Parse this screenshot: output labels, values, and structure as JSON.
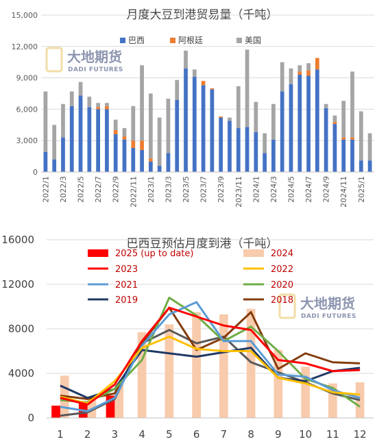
{
  "chart_data": [
    {
      "type": "bar",
      "stacked": true,
      "title": "月度大豆到港贸易量（千吨）",
      "categories": [
        "2022/1",
        "2022/2",
        "2022/3",
        "2022/4",
        "2022/5",
        "2022/6",
        "2022/7",
        "2022/8",
        "2022/9",
        "2022/10",
        "2022/11",
        "2022/12",
        "2023/1",
        "2023/2",
        "2023/3",
        "2023/4",
        "2023/5",
        "2023/6",
        "2023/7",
        "2023/8",
        "2023/9",
        "2023/10",
        "2023/11",
        "2023/12",
        "2024/1",
        "2024/2",
        "2024/3",
        "2024/4",
        "2024/5",
        "2024/6",
        "2024/7",
        "2024/8",
        "2024/9",
        "2024/10",
        "2024/11",
        "2024/12",
        "2025/1",
        "2025/2"
      ],
      "tick_labels": [
        "2022/1",
        "2022/3",
        "2022/5",
        "2022/7",
        "2022/9",
        "2022/11",
        "2023/1",
        "2023/3",
        "2023/5",
        "2023/7",
        "2023/9",
        "2023/11",
        "2024/1",
        "2024/3",
        "2024/5",
        "2024/7",
        "2024/9",
        "2024/11",
        "2025/1"
      ],
      "ylim": [
        0,
        15000
      ],
      "yticks": [
        "0",
        "3,000",
        "6,000",
        "9,000",
        "12,000",
        "15,000"
      ],
      "ytick_values": [
        0,
        3000,
        6000,
        9000,
        12000,
        15000
      ],
      "grid": true,
      "legend_position": "top",
      "series": [
        {
          "name": "巴西",
          "color": "#4472c4",
          "values": [
            1900,
            1200,
            3300,
            6300,
            7300,
            6200,
            6000,
            6000,
            3600,
            3100,
            2300,
            2100,
            1000,
            600,
            1800,
            6900,
            9900,
            9100,
            8300,
            7900,
            5200,
            4900,
            4200,
            4300,
            3800,
            1800,
            3100,
            7700,
            8400,
            9300,
            9200,
            9800,
            6100,
            4600,
            3100,
            3100,
            1100,
            1100
          ]
        },
        {
          "name": "阿根廷",
          "color": "#ed7d31",
          "values": [
            0,
            0,
            0,
            0,
            0,
            0,
            200,
            300,
            400,
            300,
            700,
            900,
            300,
            0,
            0,
            0,
            0,
            0,
            400,
            100,
            100,
            0,
            0,
            0,
            0,
            0,
            0,
            0,
            0,
            300,
            500,
            1100,
            0,
            200,
            200,
            200,
            0,
            0
          ]
        },
        {
          "name": "美国",
          "color": "#a5a5a5",
          "values": [
            5800,
            3300,
            3200,
            1400,
            1300,
            1000,
            400,
            300,
            1000,
            800,
            3300,
            7200,
            6200,
            4600,
            5200,
            1900,
            1700,
            700,
            0,
            0,
            0,
            300,
            4000,
            7400,
            2900,
            1900,
            3400,
            2800,
            1500,
            600,
            700,
            0,
            400,
            600,
            3500,
            6300,
            4700,
            2600
          ]
        }
      ],
      "watermark": {
        "cn": "大地期货",
        "en": "DADI FUTURES"
      }
    },
    {
      "type": "bar+line",
      "title": "巴西豆预估月度到港（千吨）",
      "categories": [
        "1",
        "2",
        "3",
        "4",
        "5",
        "6",
        "7",
        "8",
        "9",
        "10",
        "11",
        "12"
      ],
      "ylim": [
        0,
        16000
      ],
      "yticks": [
        "0",
        "4000",
        "8000",
        "12000",
        "16000"
      ],
      "ytick_values": [
        0,
        4000,
        8000,
        12000,
        16000
      ],
      "grid": true,
      "legend_position": "top",
      "bar_series": [
        {
          "name": "2025 (up to date)",
          "color": "#ff0000",
          "values": [
            1100,
            1500,
            2000,
            null,
            null,
            null,
            null,
            null,
            null,
            null,
            null,
            null
          ]
        },
        {
          "name": "2024",
          "color": "#f8cbad",
          "values": [
            3800,
            1700,
            3100,
            7700,
            8400,
            9500,
            9300,
            9800,
            6100,
            4600,
            3100,
            3200
          ]
        }
      ],
      "line_series": [
        {
          "name": "2023",
          "color": "#ff0000",
          "values": [
            1800,
            1200,
            3000,
            6900,
            9900,
            9100,
            8300,
            7900,
            5200,
            4900,
            4200,
            4300
          ]
        },
        {
          "name": "2022",
          "color": "#ffc000",
          "values": [
            1900,
            1300,
            3300,
            6300,
            7300,
            6200,
            6000,
            6000,
            3600,
            3100,
            2300,
            2100
          ]
        },
        {
          "name": "2021",
          "color": "#5b9bd5",
          "values": [
            1000,
            600,
            1800,
            6500,
            9300,
            10400,
            6900,
            6900,
            3900,
            3700,
            2500,
            1800
          ]
        },
        {
          "name": "2020",
          "color": "#70ad47",
          "values": [
            1600,
            1400,
            2600,
            5200,
            10800,
            9200,
            6900,
            8200,
            6000,
            3500,
            2700,
            1000
          ]
        },
        {
          "name": "2019",
          "color": "#1f3864",
          "values": [
            2900,
            1800,
            2600,
            6100,
            5800,
            5500,
            5900,
            6300,
            3600,
            3300,
            4200,
            4500
          ]
        },
        {
          "name": "2018",
          "color": "#843c0c",
          "values": [
            2000,
            1700,
            2200,
            6700,
            9900,
            6100,
            7200,
            9500,
            4400,
            5800,
            5000,
            4900
          ]
        },
        {
          "name": "",
          "color": "#595959",
          "values": [
            200,
            500,
            1700,
            6700,
            7900,
            6700,
            7300,
            5000,
            4100,
            3200,
            2200,
            1600
          ]
        }
      ],
      "watermark": {
        "cn": "大地期货",
        "en": "DADI FUTURES"
      }
    }
  ]
}
